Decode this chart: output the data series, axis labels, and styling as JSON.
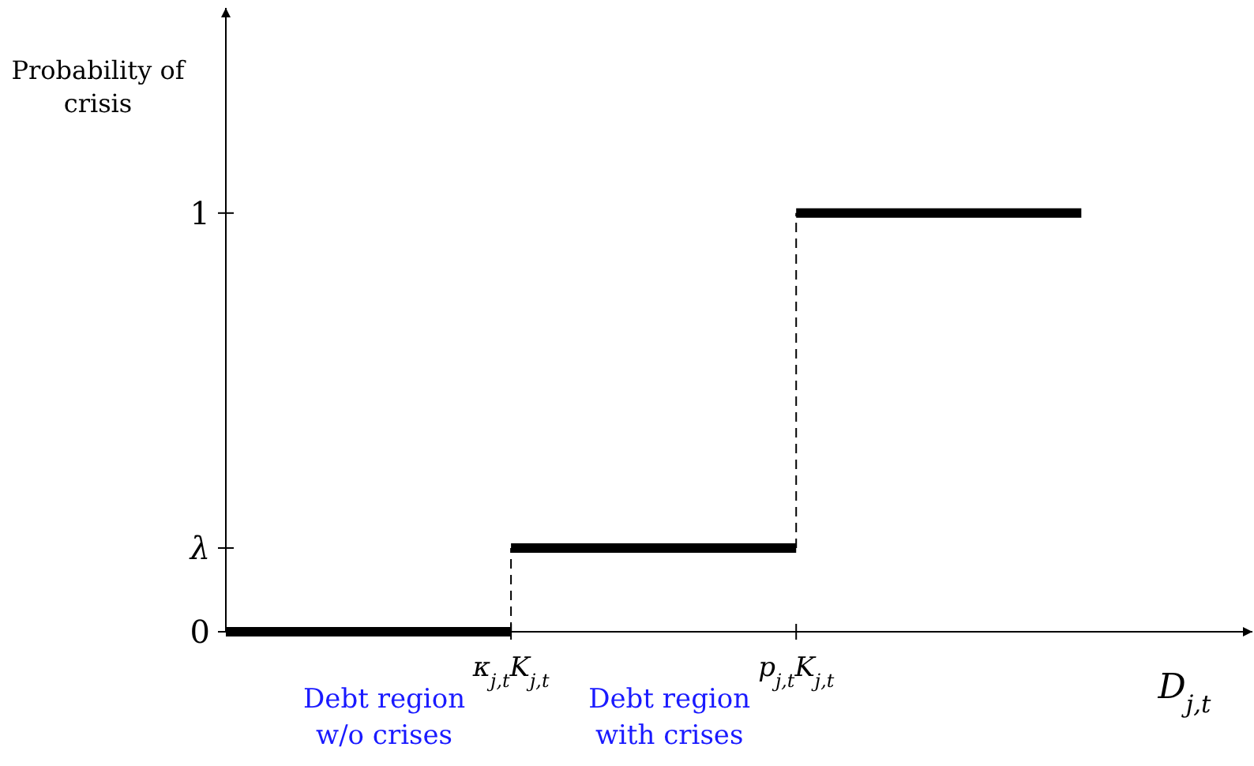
{
  "chart_data": {
    "type": "step",
    "ylabel": "Probability of crisis",
    "xlabel": "D$_{j,t}$",
    "categories": [
      null,
      "κ$_{j,t}$K$_{j,t}$",
      "p$_{j,t}$K$_{j,t}$",
      null
    ],
    "ylim": [
      0,
      1.49
    ],
    "yticks": [
      0,
      {
        "value": 0.2,
        "label": "λ"
      },
      1
    ],
    "series": [
      {
        "color": "#000000",
        "values": [
          0,
          0.2,
          1,
          1
        ]
      }
    ],
    "annotations": [
      "Debt region w/o crises",
      "Debt region with crises"
    ],
    "grid": false
  }
}
